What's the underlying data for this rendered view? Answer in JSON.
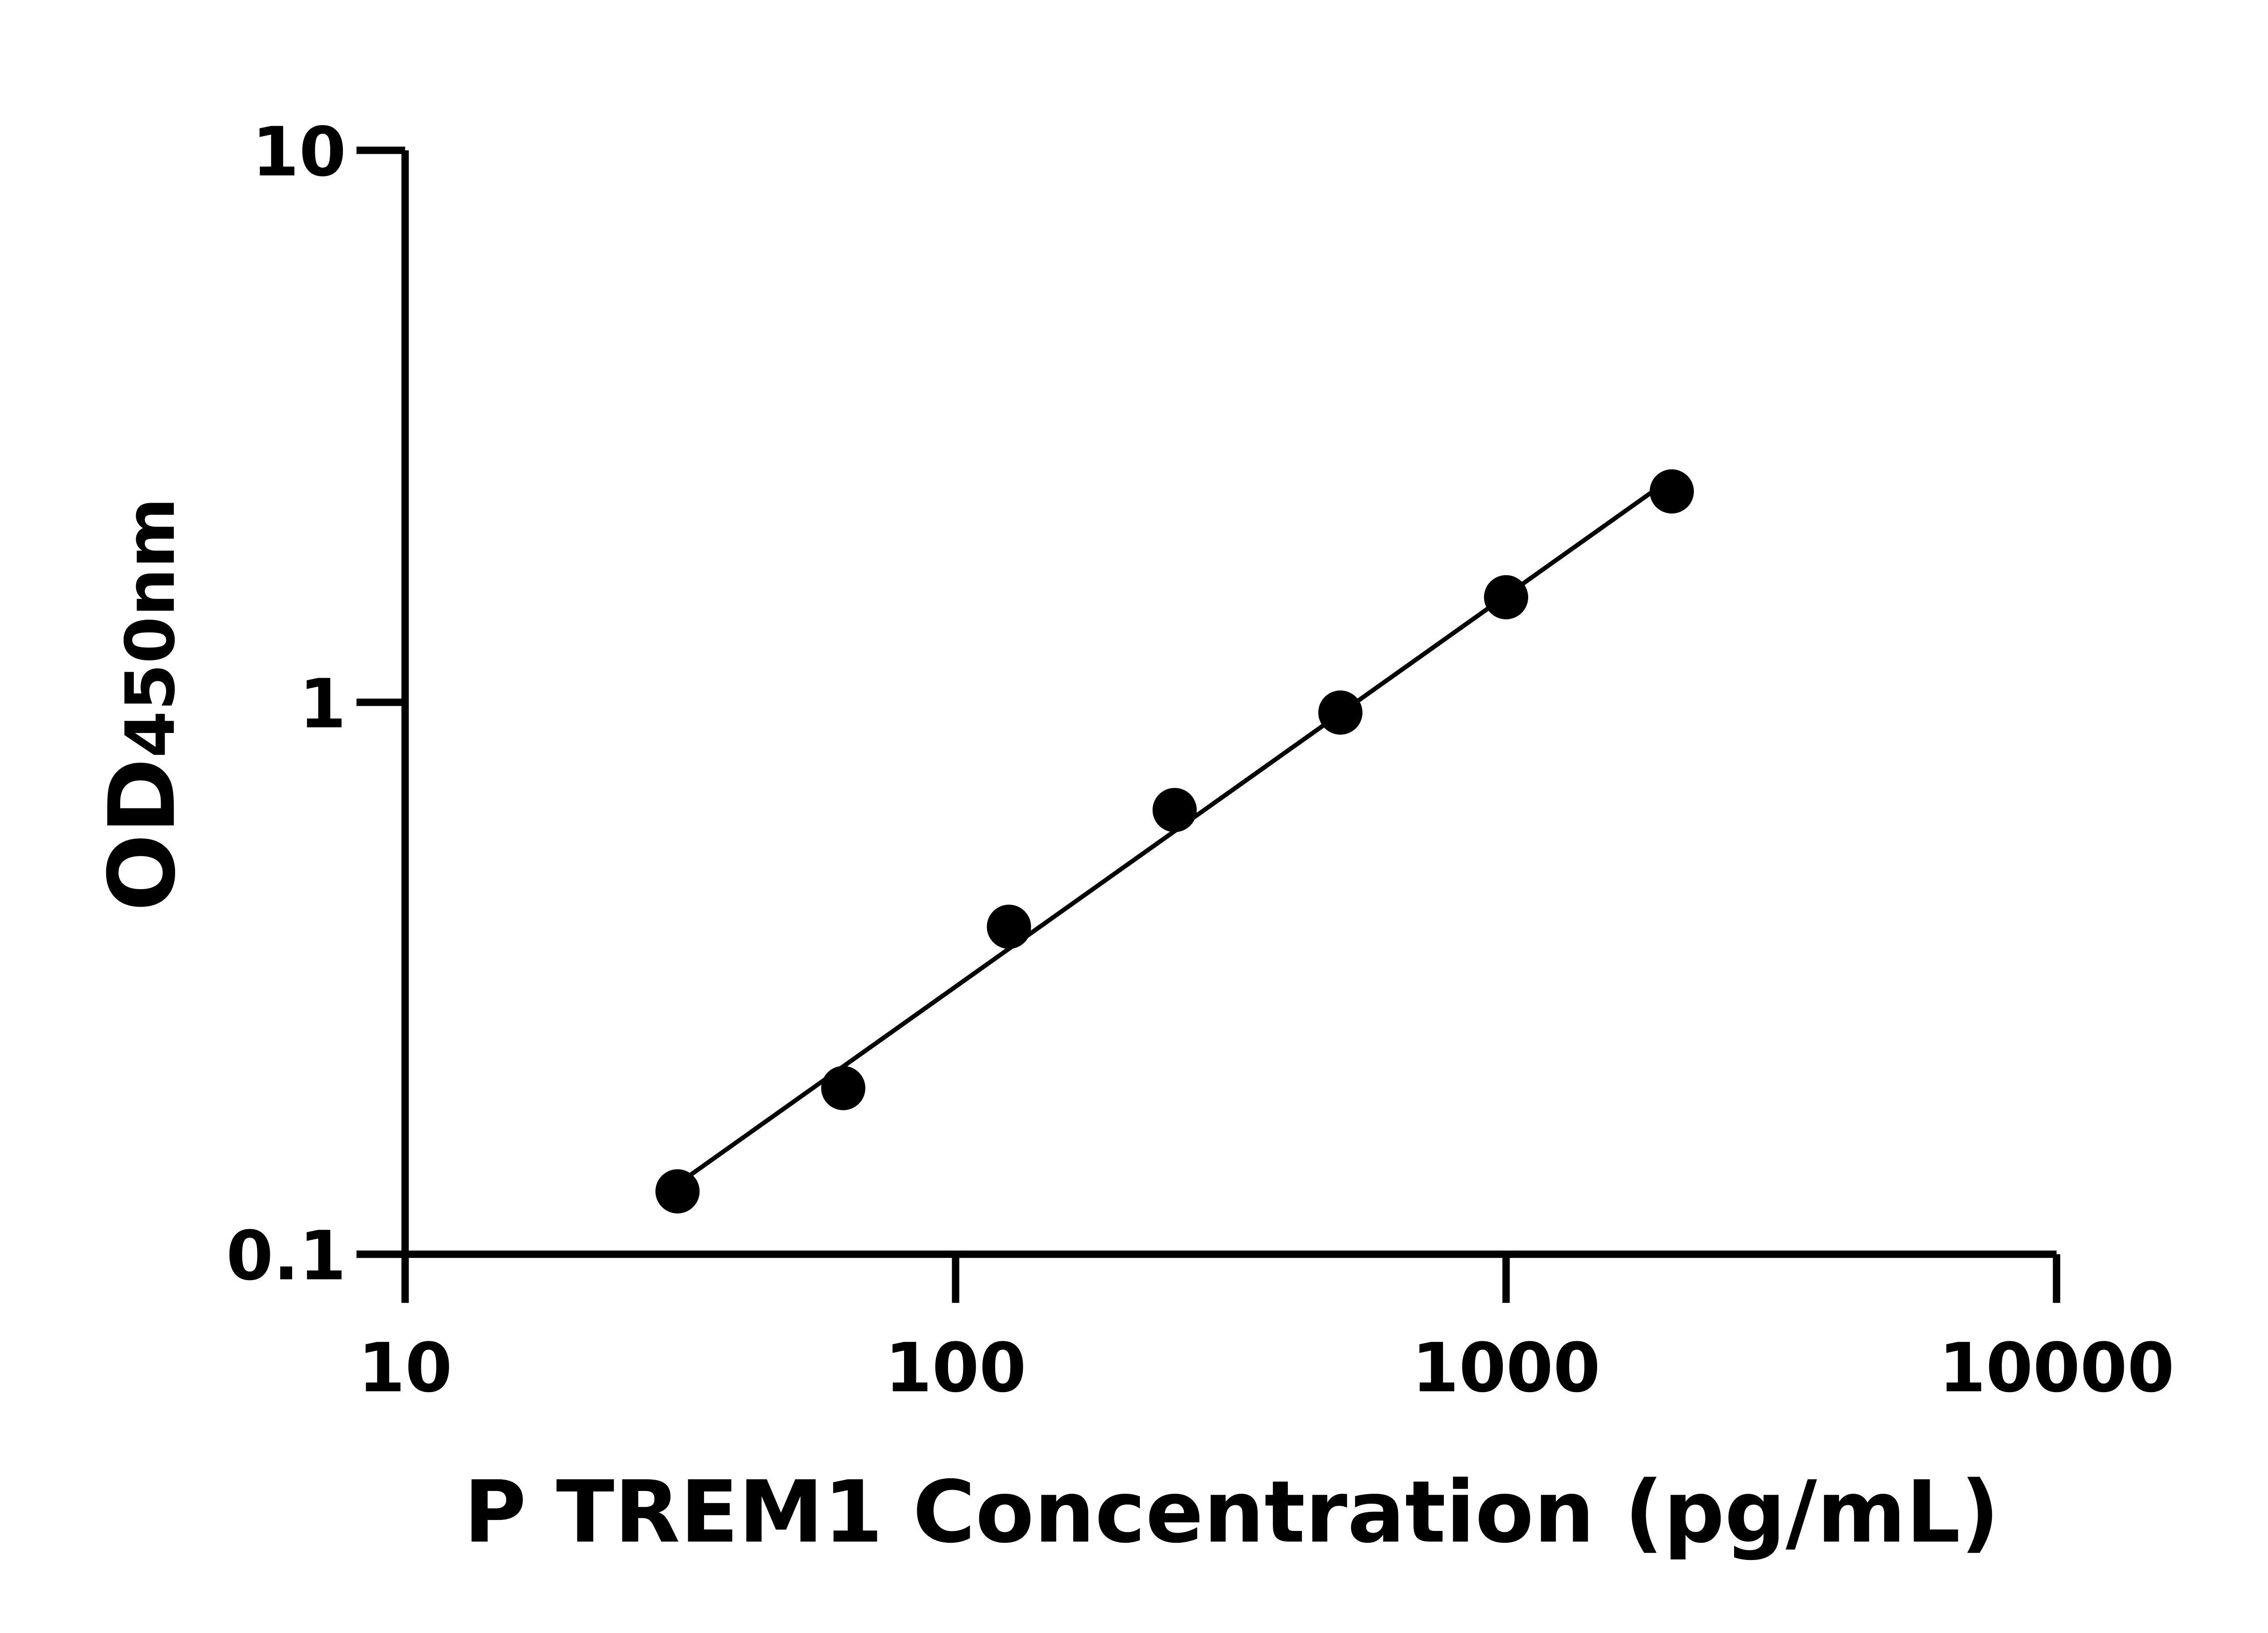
{
  "chart_data": {
    "type": "scatter",
    "xlabel": "P TREM1 Concentration (pg/mL)",
    "ylabel_main": "OD",
    "ylabel_sub": "450nm",
    "x_scale": "log",
    "y_scale": "log",
    "xlim": [
      10,
      10000
    ],
    "ylim": [
      0.1,
      10
    ],
    "x_ticks": [
      "10",
      "100",
      "1000",
      "10000"
    ],
    "y_ticks": [
      "0.1",
      "1",
      "10"
    ],
    "grid": false,
    "points": {
      "x": [
        31.25,
        62.5,
        125,
        250,
        500,
        1000,
        2000
      ],
      "y": [
        0.13,
        0.2,
        0.392,
        0.638,
        0.958,
        1.55,
        2.41
      ]
    },
    "fit_line": "log-log linear fit through points",
    "colors": {
      "marks": "#000000",
      "background": "#ffffff"
    }
  }
}
